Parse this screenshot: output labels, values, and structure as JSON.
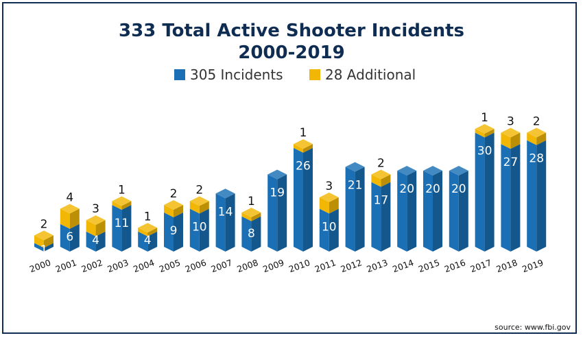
{
  "chart_data": {
    "type": "bar",
    "stacked": true,
    "title": "333 Total Active Shooter Incidents",
    "subtitle": "2000-2019",
    "categories": [
      "2000",
      "2001",
      "2002",
      "2003",
      "2004",
      "2005",
      "2006",
      "2007",
      "2008",
      "2009",
      "2010",
      "2011",
      "2012",
      "2013",
      "2014",
      "2015",
      "2016",
      "2017",
      "2018",
      "2019"
    ],
    "series": [
      {
        "name": "305 Incidents",
        "color": "#1a6fb5",
        "values": [
          1,
          6,
          4,
          11,
          4,
          9,
          10,
          14,
          8,
          19,
          26,
          10,
          21,
          17,
          20,
          20,
          20,
          30,
          27,
          28
        ]
      },
      {
        "name": "28 Additional",
        "color": "#f2b705",
        "values": [
          2,
          4,
          3,
          1,
          1,
          2,
          2,
          0,
          1,
          0,
          1,
          3,
          0,
          2,
          0,
          0,
          0,
          1,
          3,
          2
        ]
      }
    ],
    "ylim": [
      0,
      33
    ],
    "grid": false,
    "legend_position": "top"
  },
  "source_label": "source: www.fbi.gov"
}
